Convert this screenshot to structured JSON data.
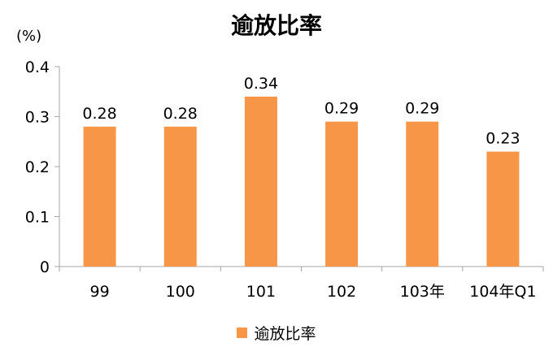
{
  "chart_data": {
    "type": "bar",
    "title": "逾放比率",
    "ylabel": "(%)",
    "categories": [
      "99",
      "100",
      "101",
      "102",
      "103年",
      "104年Q1"
    ],
    "series": [
      {
        "name": "逾放比率",
        "values": [
          0.28,
          0.28,
          0.34,
          0.29,
          0.29,
          0.23
        ]
      }
    ],
    "data_labels": [
      "0.28",
      "0.28",
      "0.34",
      "0.29",
      "0.29",
      "0.23"
    ],
    "ylim": [
      0,
      0.4
    ],
    "yticks": [
      "0",
      "0.1",
      "0.2",
      "0.3",
      "0.4"
    ],
    "grid": false,
    "legend": "bottom",
    "bar_color": "#F79646",
    "axis_color": "#A6A6A6"
  }
}
